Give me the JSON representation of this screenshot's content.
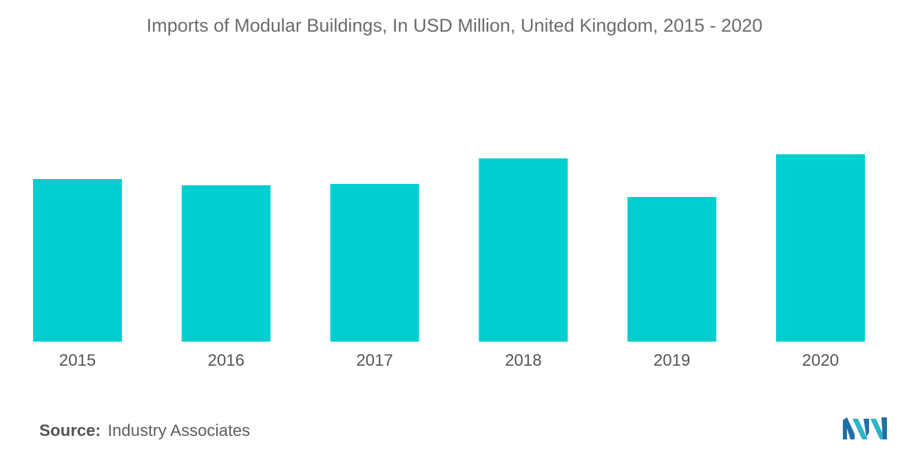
{
  "chart_data": {
    "type": "bar",
    "title": "Imports of Modular Buildings, In USD Million, United Kingdom, 2015 - 2020",
    "categories": [
      "2015",
      "2016",
      "2017",
      "2018",
      "2019",
      "2020"
    ],
    "values": [
      236,
      227,
      229,
      266,
      210,
      272
    ],
    "ylim": [
      0,
      300
    ],
    "xlabel": "",
    "ylabel": "",
    "grid": false,
    "legend": "none",
    "bar_color": "#00CED1"
  },
  "source": {
    "label": "Source:",
    "text": "Industry Associates"
  },
  "logo": {
    "icon": "mordor-intelligence-logo",
    "colors": [
      "#1F6FA8",
      "#2EB3C9"
    ]
  }
}
